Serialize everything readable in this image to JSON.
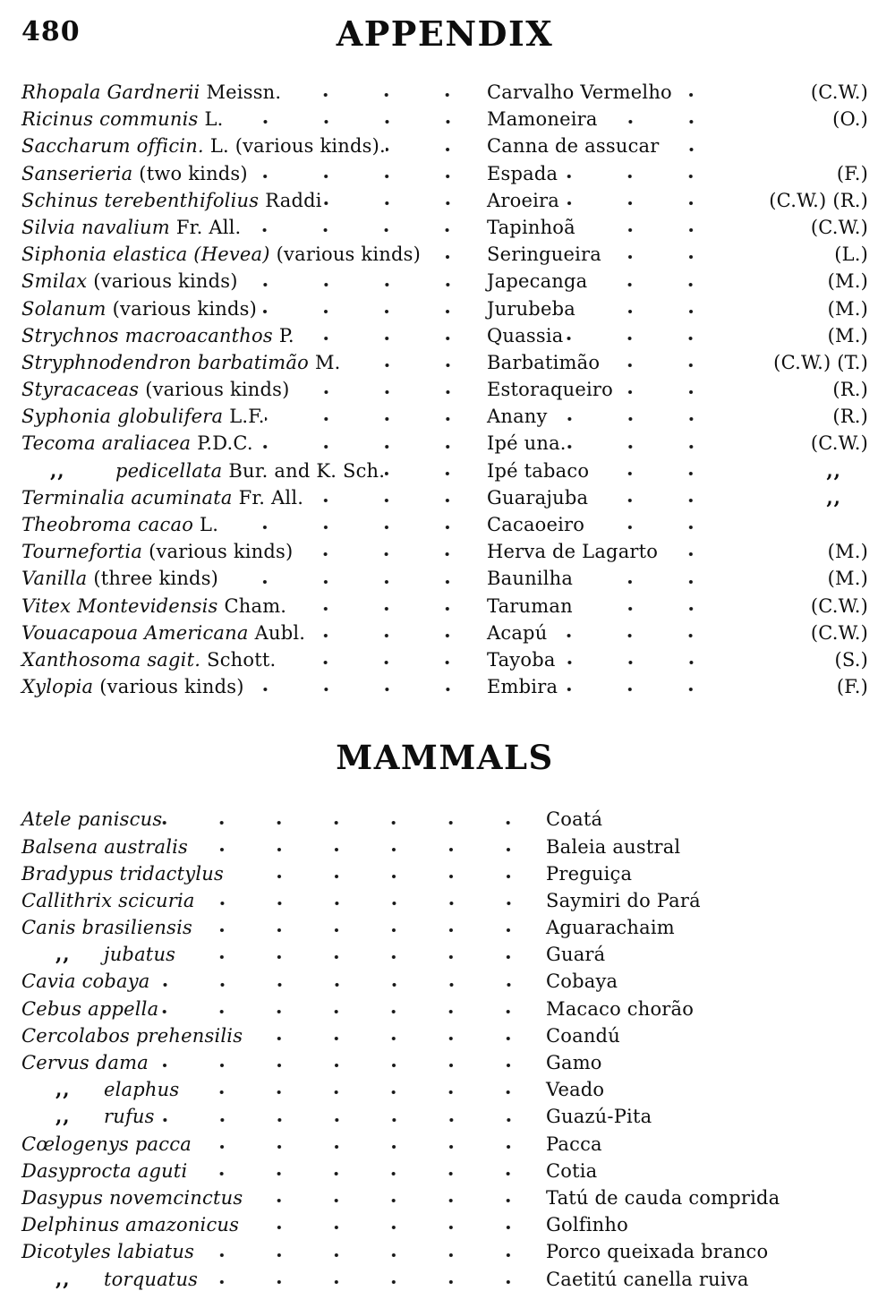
{
  "page": {
    "number": "480",
    "title": "APPENDIX"
  },
  "plants": {
    "rows": [
      {
        "prefix": "",
        "italic": "Rhopala Gardnerii",
        "roman": "Meissn.",
        "common": "Carvalho Vermelho",
        "abbrev": "(C.W.)"
      },
      {
        "prefix": "",
        "italic": "Ricinus communis",
        "roman": "L.",
        "common": "Mamoneira",
        "abbrev": "(O.)"
      },
      {
        "prefix": "",
        "italic": "Saccharum officin.",
        "roman": "L. (various kinds).",
        "common": "Canna de assucar",
        "abbrev": ""
      },
      {
        "prefix": "",
        "italic": "Sanserieria",
        "roman": "(two kinds)",
        "common": "Espada",
        "abbrev": "(F.)"
      },
      {
        "prefix": "",
        "italic": "Schinus terebenthifolius",
        "roman": "Raddi",
        "common": "Aroeira",
        "abbrev": "(C.W.) (R.)"
      },
      {
        "prefix": "",
        "italic": "Silvia navalium",
        "roman": "Fr. All.",
        "common": "Tapinhoã",
        "abbrev": "(C.W.)"
      },
      {
        "prefix": "",
        "italic": "Siphonia elastica (Hevea)",
        "roman": "(various kinds)",
        "common": "Seringueira",
        "abbrev": "(L.)"
      },
      {
        "prefix": "",
        "italic": "Smilax",
        "roman": "(various kinds)",
        "common": "Japecanga",
        "abbrev": "(M.)"
      },
      {
        "prefix": "",
        "italic": "Solanum",
        "roman": "(various kinds)",
        "common": "Jurubeba",
        "abbrev": "(M.)"
      },
      {
        "prefix": "",
        "italic": "Strychnos macroacanthos",
        "roman": "P.",
        "common": "Quassia",
        "abbrev": "(M.)"
      },
      {
        "prefix": "",
        "italic": "Stryphnodendron barbatimão",
        "roman": "M.",
        "common": "Barbatimão",
        "abbrev": "(C.W.) (T.)"
      },
      {
        "prefix": "",
        "italic": "Styracaceas",
        "roman": "(various kinds)",
        "common": "Estoraqueiro",
        "abbrev": "(R.)"
      },
      {
        "prefix": "",
        "italic": "Syphonia globulifera",
        "roman": "L.F.",
        "common": "Anany",
        "abbrev": "(R.)"
      },
      {
        "prefix": "",
        "italic": "Tecoma araliacea",
        "roman": "P.D.C.",
        "common": "Ipé una.",
        "abbrev": "(C.W.)"
      },
      {
        "prefix": ",,",
        "italic": "pedicellata",
        "roman": "Bur. and K. Sch.",
        "common": "Ipé tabaco",
        "abbrev": ",,"
      },
      {
        "prefix": "",
        "italic": "Terminalia acuminata",
        "roman": "Fr. All.",
        "common": "Guarajuba",
        "abbrev": ",,"
      },
      {
        "prefix": "",
        "italic": "Theobroma cacao",
        "roman": "L.",
        "common": "Cacaoeiro",
        "abbrev": ""
      },
      {
        "prefix": "",
        "italic": "Tournefortia",
        "roman": "(various kinds)",
        "common": "Herva de Lagarto",
        "abbrev": "(M.)"
      },
      {
        "prefix": "",
        "italic": "Vanilla",
        "roman": "(three kinds)",
        "common": "Baunilha",
        "abbrev": "(M.)"
      },
      {
        "prefix": "",
        "italic": "Vitex Montevidensis",
        "roman": "Cham.",
        "common": "Taruman",
        "abbrev": "(C.W.)"
      },
      {
        "prefix": "",
        "italic": "Vouacapoua Americana",
        "roman": "Aubl.",
        "common": "Acapú",
        "abbrev": "(C.W.)"
      },
      {
        "prefix": "",
        "italic": "Xanthosoma sagit.",
        "roman": "Schott.",
        "common": "Tayoba",
        "abbrev": "(S.)"
      },
      {
        "prefix": "",
        "italic": "Xylopia",
        "roman": "(various kinds)",
        "common": "Embira",
        "abbrev": "(F.)"
      }
    ]
  },
  "mammals": {
    "title": "MAMMALS",
    "rows": [
      {
        "prefix": "",
        "italic": "Atele paniscus",
        "common": "Coatá"
      },
      {
        "prefix": "",
        "italic": "Balsena australis",
        "common": "Baleia austral"
      },
      {
        "prefix": "",
        "italic": "Bradypus tridactylus",
        "common": "Preguiça"
      },
      {
        "prefix": "",
        "italic": "Callithrix scicuria",
        "common": "Saymiri do Pará"
      },
      {
        "prefix": "",
        "italic": "Canis brasiliensis",
        "common": "Aguarachaim"
      },
      {
        "prefix": ",,",
        "italic": "jubatus",
        "common": "Guará"
      },
      {
        "prefix": "",
        "italic": "Cavia cobaya",
        "common": "Cobaya"
      },
      {
        "prefix": "",
        "italic": "Cebus appella",
        "common": "Macaco chorão"
      },
      {
        "prefix": "",
        "italic": "Cercolabos prehensilis",
        "common": "Coandú"
      },
      {
        "prefix": "",
        "italic": "Cervus dama",
        "common": "Gamo"
      },
      {
        "prefix": ",,",
        "italic": "elaphus",
        "common": "Veado"
      },
      {
        "prefix": ",,",
        "italic": "rufus",
        "common": "Guazú-Pita"
      },
      {
        "prefix": "",
        "italic": "Cœlogenys pacca",
        "common": "Pacca"
      },
      {
        "prefix": "",
        "italic": "Dasyprocta aguti",
        "common": "Cotia"
      },
      {
        "prefix": "",
        "italic": "Dasypus novemcinctus",
        "common": "Tatú de cauda comprida"
      },
      {
        "prefix": "",
        "italic": "Delphinus amazonicus",
        "common": "Golfinho"
      },
      {
        "prefix": "",
        "italic": "Dicotyles labiatus",
        "common": "Porco queixada branco"
      },
      {
        "prefix": ",,",
        "italic": "torquatus",
        "common": "Caetitú canella ruiva"
      }
    ]
  }
}
